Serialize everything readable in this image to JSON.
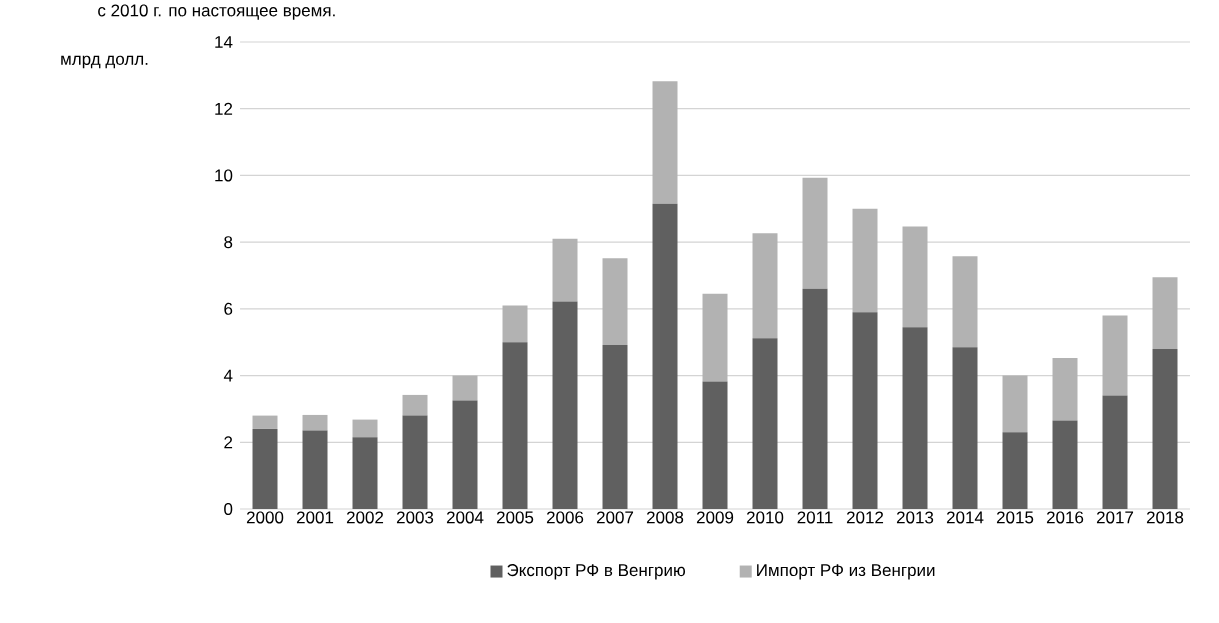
{
  "chart_data": {
    "type": "bar",
    "stacked": true,
    "ylabel": "млрд долл.",
    "annotations": [
      "с 2010 г. по настоящее время."
    ],
    "categories": [
      "2000",
      "2001",
      "2002",
      "2003",
      "2004",
      "2005",
      "2006",
      "2007",
      "2008",
      "2009",
      "2010",
      "2011",
      "2012",
      "2013",
      "2014",
      "2015",
      "2016",
      "2017",
      "2018"
    ],
    "series": [
      {
        "name": "Экспорт РФ в Венгрию",
        "color": "#606060",
        "values": [
          2.4,
          2.35,
          2.15,
          2.8,
          3.25,
          5.0,
          6.22,
          4.92,
          9.15,
          3.82,
          5.12,
          6.6,
          5.9,
          5.45,
          4.85,
          2.3,
          2.65,
          3.4,
          4.8
        ]
      },
      {
        "name": "Импорт РФ из Венгрии",
        "color": "#b2b2b2",
        "values": [
          0.4,
          0.47,
          0.53,
          0.62,
          0.75,
          1.1,
          1.88,
          2.6,
          3.67,
          2.63,
          3.15,
          3.33,
          3.1,
          3.02,
          2.73,
          1.7,
          1.88,
          2.4,
          2.15
        ]
      }
    ],
    "ylim": [
      0,
      14
    ],
    "yticks": [
      0,
      2,
      4,
      6,
      8,
      10,
      12,
      14
    ],
    "grid": "y",
    "legend": "bottom"
  }
}
